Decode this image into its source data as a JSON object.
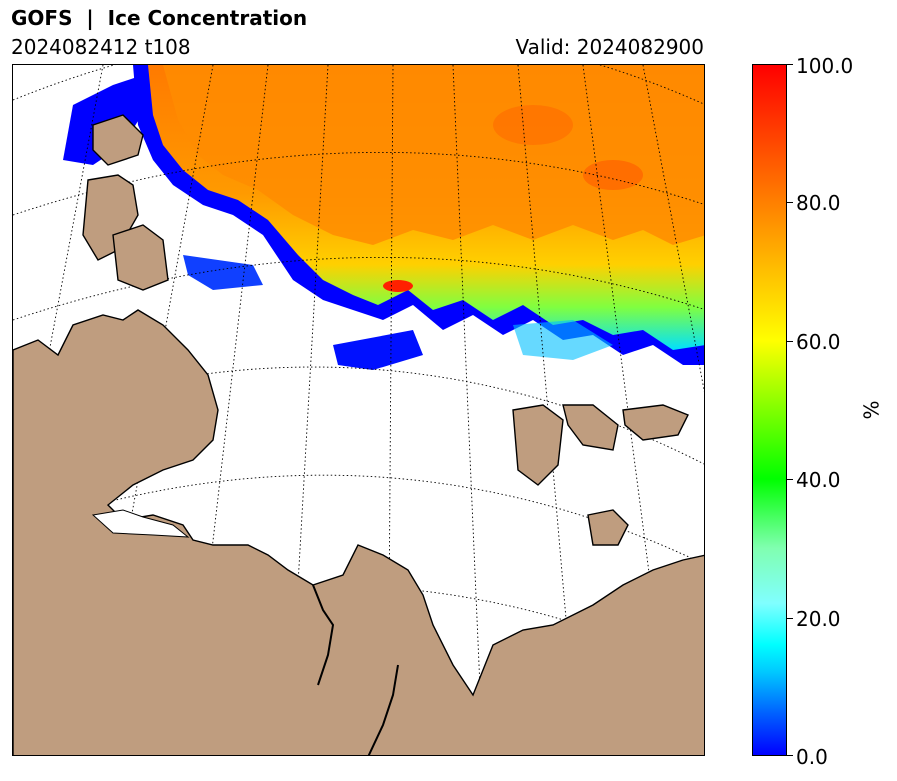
{
  "header": {
    "title": "GOFS  |  Ice Concentration",
    "run": "2024082412 t108",
    "valid": "Valid: 2024082900"
  },
  "colorbar": {
    "unit": "%",
    "ticks": [
      {
        "label": "100.0",
        "value": 100
      },
      {
        "label": "80.0",
        "value": 80
      },
      {
        "label": "60.0",
        "value": 60
      },
      {
        "label": "40.0",
        "value": 40
      },
      {
        "label": "20.0",
        "value": 20
      },
      {
        "label": "0.0",
        "value": 0
      }
    ]
  },
  "colors": {
    "land": "#bf9d7f",
    "ocean": "#ffffff",
    "ice_low": "#0000ff",
    "ice_high": "#ff0000"
  }
}
